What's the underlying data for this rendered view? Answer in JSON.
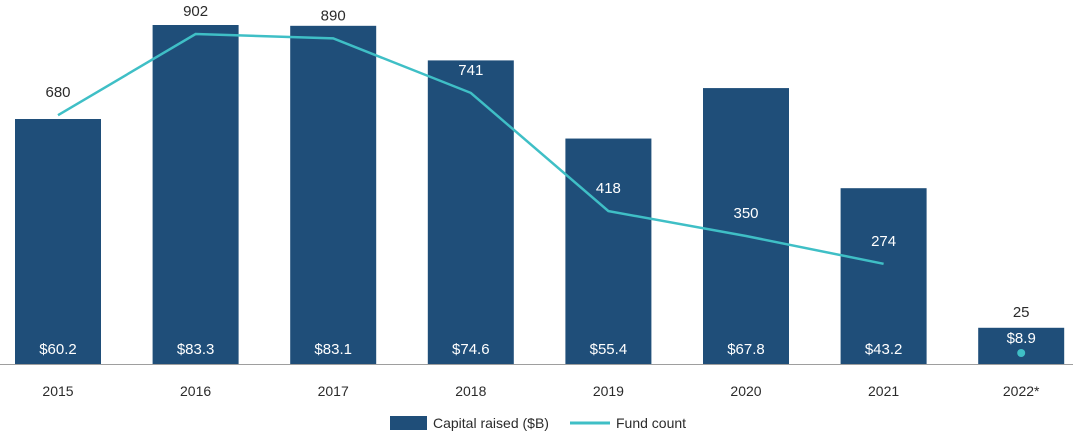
{
  "colors": {
    "bar": "#1f4e79",
    "line": "#3fbfc6",
    "axis": "#9e9e9e"
  },
  "chart_data": {
    "type": "bar",
    "categories": [
      "2015",
      "2016",
      "2017",
      "2018",
      "2019",
      "2020",
      "2021",
      "2022*"
    ],
    "series": [
      {
        "name": "Capital raised ($B)",
        "type": "bar",
        "values": [
          60.2,
          83.3,
          83.1,
          74.6,
          55.4,
          67.8,
          43.2,
          8.9
        ],
        "labels": [
          "$60.2",
          "$83.3",
          "$83.1",
          "$74.6",
          "$55.4",
          "$67.8",
          "$43.2",
          "$8.9"
        ]
      },
      {
        "name": "Fund count",
        "type": "line",
        "values": [
          680,
          902,
          890,
          741,
          418,
          350,
          274,
          25
        ],
        "labels": [
          "680",
          "902",
          "890",
          "741",
          "418",
          "350",
          "274",
          "25"
        ]
      }
    ],
    "legend": [
      "Capital raised ($B)",
      "Fund count"
    ],
    "legend_position": "bottom-center",
    "grid": false,
    "ylim_bar": [
      0,
      90
    ],
    "ylim_line": [
      0,
      1000
    ]
  }
}
